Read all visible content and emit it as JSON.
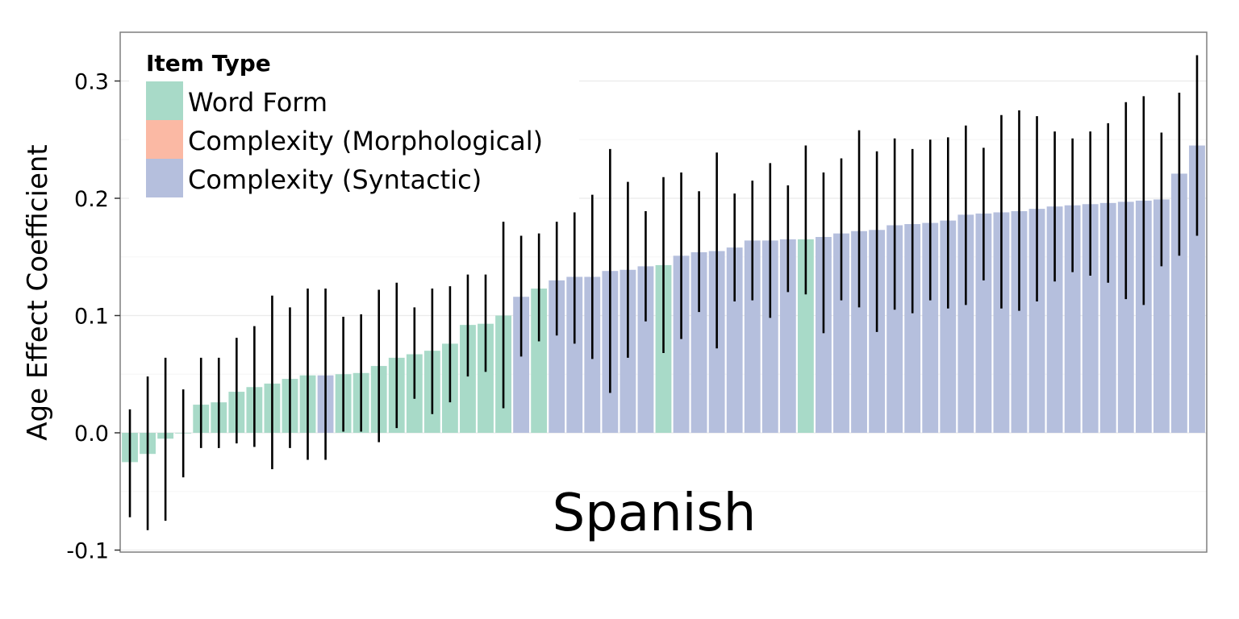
{
  "chart_data": {
    "type": "bar",
    "panel_label": "Spanish",
    "ylabel": "Age Effect Coefficient",
    "xlabel": "",
    "ylim": [
      -0.1,
      0.3
    ],
    "yticks": [
      -0.1,
      0.0,
      0.1,
      0.2,
      0.3
    ],
    "ytick_labels": [
      "-0.1",
      "0.0",
      "0.1",
      "0.2",
      "0.3"
    ],
    "legend": {
      "title": "Item Type",
      "position": "top-left",
      "entries": [
        {
          "key": "word_form",
          "label": "Word Form",
          "color": "#a8dac8"
        },
        {
          "key": "morphological",
          "label": "Complexity (Morphological)",
          "color": "#fbb9a4"
        },
        {
          "key": "syntactic",
          "label": "Complexity (Syntactic)",
          "color": "#b5bfdd"
        }
      ]
    },
    "colors": {
      "W": "#a8dac8",
      "M": "#fbb9a4",
      "S": "#b5bfdd",
      "error_bar": "#000000",
      "frame": "#7f7f7f",
      "grid": "#ebebeb"
    },
    "types": [
      "W",
      "W",
      "W",
      "W",
      "W",
      "W",
      "W",
      "W",
      "W",
      "W",
      "W",
      "S",
      "W",
      "W",
      "W",
      "W",
      "W",
      "W",
      "W",
      "W",
      "W",
      "W",
      "S",
      "W",
      "S",
      "S",
      "S",
      "S",
      "S",
      "S",
      "W",
      "S",
      "S",
      "S",
      "S",
      "S",
      "S",
      "S",
      "W",
      "S",
      "S",
      "S",
      "S",
      "S",
      "S",
      "S",
      "S",
      "S",
      "S",
      "S",
      "S",
      "S",
      "S",
      "S",
      "S",
      "S",
      "S",
      "S",
      "S",
      "S",
      "S"
    ],
    "values": [
      -0.025,
      -0.018,
      -0.005,
      0.0,
      0.024,
      0.026,
      0.035,
      0.039,
      0.042,
      0.046,
      0.049,
      0.049,
      0.05,
      0.051,
      0.057,
      0.064,
      0.067,
      0.07,
      0.076,
      0.092,
      0.093,
      0.1,
      0.116,
      0.123,
      0.13,
      0.133,
      0.133,
      0.138,
      0.139,
      0.142,
      0.143,
      0.151,
      0.154,
      0.155,
      0.158,
      0.164,
      0.164,
      0.165,
      0.165,
      0.167,
      0.17,
      0.172,
      0.173,
      0.177,
      0.178,
      0.179,
      0.181,
      0.186,
      0.187,
      0.188,
      0.189,
      0.191,
      0.193,
      0.194,
      0.195,
      0.196,
      0.197,
      0.198,
      0.199,
      0.221,
      0.245
    ],
    "error_low": [
      -0.072,
      -0.083,
      -0.075,
      -0.038,
      -0.013,
      -0.013,
      -0.009,
      -0.012,
      -0.031,
      -0.013,
      -0.023,
      -0.023,
      0.001,
      0.001,
      -0.008,
      0.004,
      0.029,
      0.016,
      0.026,
      0.048,
      0.052,
      0.021,
      0.065,
      0.078,
      0.083,
      0.076,
      0.063,
      0.034,
      0.064,
      0.095,
      0.068,
      0.08,
      0.103,
      0.072,
      0.112,
      0.113,
      0.098,
      0.12,
      0.118,
      0.085,
      0.113,
      0.107,
      0.086,
      0.105,
      0.102,
      0.113,
      0.106,
      0.109,
      0.13,
      0.106,
      0.104,
      0.112,
      0.129,
      0.137,
      0.134,
      0.128,
      0.114,
      0.109,
      0.142,
      0.151,
      0.168
    ],
    "error_high": [
      0.02,
      0.048,
      0.064,
      0.037,
      0.064,
      0.064,
      0.081,
      0.091,
      0.117,
      0.107,
      0.123,
      0.123,
      0.099,
      0.101,
      0.122,
      0.128,
      0.107,
      0.123,
      0.125,
      0.135,
      0.135,
      0.18,
      0.168,
      0.17,
      0.18,
      0.188,
      0.203,
      0.242,
      0.214,
      0.189,
      0.218,
      0.222,
      0.206,
      0.239,
      0.204,
      0.215,
      0.23,
      0.211,
      0.245,
      0.222,
      0.234,
      0.258,
      0.24,
      0.251,
      0.242,
      0.25,
      0.252,
      0.262,
      0.243,
      0.271,
      0.275,
      0.27,
      0.257,
      0.251,
      0.257,
      0.264,
      0.282,
      0.287,
      0.256,
      0.29,
      0.322
    ]
  }
}
